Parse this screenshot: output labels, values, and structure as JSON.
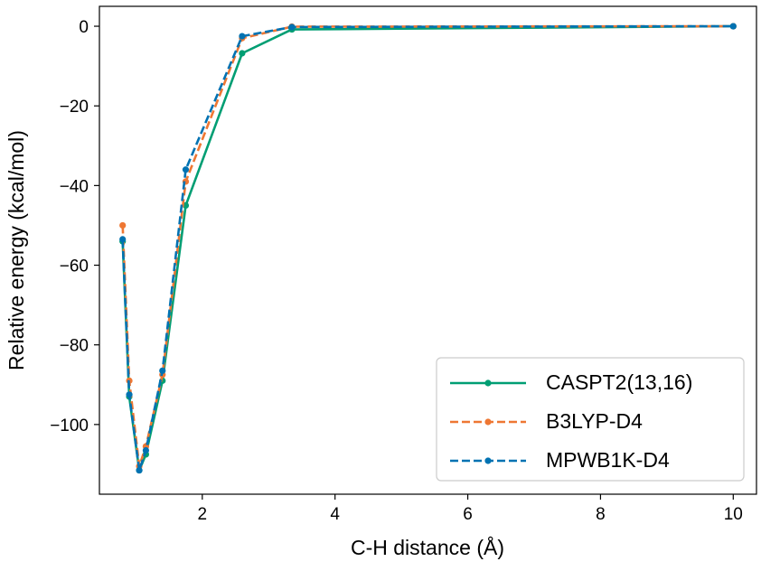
{
  "chart_data": {
    "type": "line",
    "title": "",
    "xlabel": "C-H distance (Å)",
    "ylabel": "Relative energy (kcal/mol)",
    "xlim": [
      0.45,
      10.35
    ],
    "ylim": [
      -117.5,
      5
    ],
    "xticks": [
      2,
      4,
      6,
      8,
      10
    ],
    "xtick_labels": [
      "2",
      "4",
      "6",
      "8",
      "10"
    ],
    "yticks": [
      0,
      -20,
      -40,
      -60,
      -80,
      -100
    ],
    "ytick_labels": [
      "0",
      "−20",
      "−40",
      "−60",
      "−80",
      "−100"
    ],
    "grid": false,
    "legend_position": "lower-right",
    "x": [
      0.8,
      0.9,
      1.05,
      1.15,
      1.4,
      1.75,
      2.6,
      3.35,
      10.0
    ],
    "series": [
      {
        "name": "CASPT2(13,16)",
        "color": "#009e73",
        "style": "solid",
        "values": [
          -54.0,
          -93.0,
          -111.5,
          -107.5,
          -89.0,
          -45.0,
          -6.8,
          -0.8,
          0.0
        ]
      },
      {
        "name": "B3LYP-D4",
        "color": "#ee7733",
        "style": "dashed",
        "values": [
          -50.0,
          -89.0,
          -110.5,
          -105.5,
          -87.5,
          -39.0,
          -3.0,
          -0.1,
          0.0
        ]
      },
      {
        "name": "MPWB1K-D4",
        "color": "#0072b2",
        "style": "dashed",
        "values": [
          -53.5,
          -92.5,
          -111.5,
          -106.5,
          -86.5,
          -36.0,
          -2.5,
          -0.2,
          0.0
        ]
      }
    ]
  }
}
